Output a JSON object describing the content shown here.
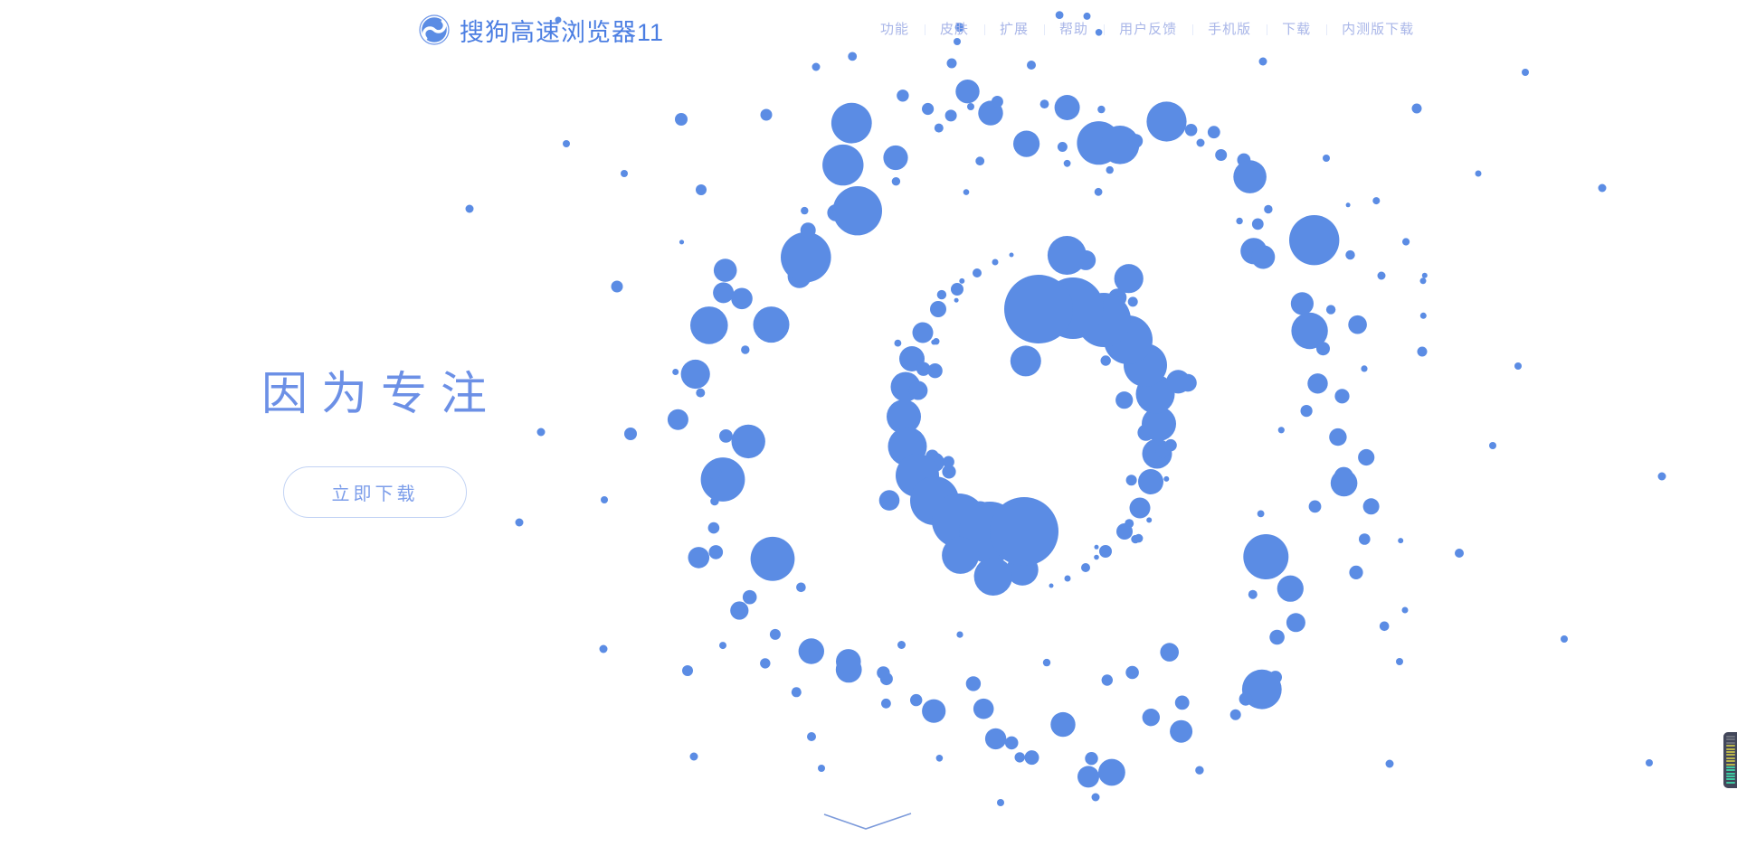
{
  "brand": {
    "name": "搜狗高速浏览器11"
  },
  "nav": {
    "items": [
      {
        "label": "功能"
      },
      {
        "label": "皮肤"
      },
      {
        "label": "扩展"
      },
      {
        "label": "帮助"
      },
      {
        "label": "用户反馈"
      },
      {
        "label": "手机版"
      },
      {
        "label": "下载"
      },
      {
        "label": "内测版下载"
      }
    ]
  },
  "hero": {
    "headline": "因为专注",
    "download_button_label": "立即下载"
  },
  "icons": {
    "logo": "sogou-s-icon",
    "scroll_hint": "chevron-down-icon"
  },
  "colors": {
    "dot_blue": "#5b8ce4",
    "brand_text": "#4b7ee2",
    "nav_text": "#a9b6e8",
    "nav_divider": "#e4eafa",
    "headline": "#6c90e6",
    "button_border": "#c2d3f4",
    "button_text": "#7d9eea",
    "chevron": "#7d9bdb",
    "widget_bg": "#42475a",
    "widget_bar_gray": "#6d717c",
    "widget_bar_yellow": "#b9b44c",
    "widget_bar_teal": "#3fc9a2"
  }
}
